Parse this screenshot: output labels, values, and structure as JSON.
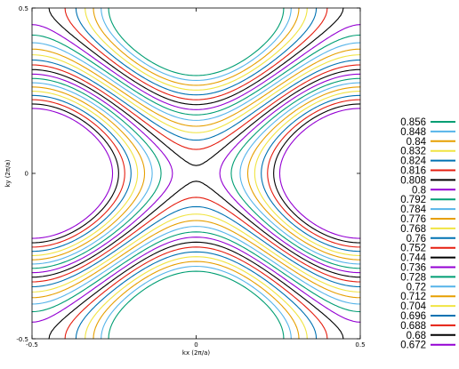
{
  "chart_data": {
    "type": "contour",
    "title": "",
    "xlabel": "kx (2π/a)",
    "ylabel": "ky (2π/a)",
    "xlim": [
      -0.5,
      0.5
    ],
    "ylim": [
      -0.5,
      0.5
    ],
    "x_ticks": [
      "-0.5",
      "0",
      "0.5"
    ],
    "y_ticks": [
      "-0.5",
      "0",
      "0.5"
    ],
    "grid": false,
    "legend_position": "right",
    "levels": [
      {
        "value": "0.856",
        "color": "#009e73"
      },
      {
        "value": "0.848",
        "color": "#56b4e9"
      },
      {
        "value": "0.84",
        "color": "#e69f00"
      },
      {
        "value": "0.832",
        "color": "#f0e442"
      },
      {
        "value": "0.824",
        "color": "#0072b2"
      },
      {
        "value": "0.816",
        "color": "#e51e10"
      },
      {
        "value": "0.808",
        "color": "#000000"
      },
      {
        "value": "0.8",
        "color": "#9400d3"
      },
      {
        "value": "0.792",
        "color": "#009e73"
      },
      {
        "value": "0.784",
        "color": "#56b4e9"
      },
      {
        "value": "0.776",
        "color": "#e69f00"
      },
      {
        "value": "0.768",
        "color": "#f0e442"
      },
      {
        "value": "0.76",
        "color": "#0072b2"
      },
      {
        "value": "0.752",
        "color": "#e51e10"
      },
      {
        "value": "0.744",
        "color": "#000000"
      },
      {
        "value": "0.736",
        "color": "#9400d3"
      },
      {
        "value": "0.728",
        "color": "#009e73"
      },
      {
        "value": "0.72",
        "color": "#56b4e9"
      },
      {
        "value": "0.712",
        "color": "#e69f00"
      },
      {
        "value": "0.704",
        "color": "#f0e442"
      },
      {
        "value": "0.696",
        "color": "#0072b2"
      },
      {
        "value": "0.688",
        "color": "#e51e10"
      },
      {
        "value": "0.68",
        "color": "#000000"
      },
      {
        "value": "0.672",
        "color": "#9400d3"
      }
    ]
  }
}
